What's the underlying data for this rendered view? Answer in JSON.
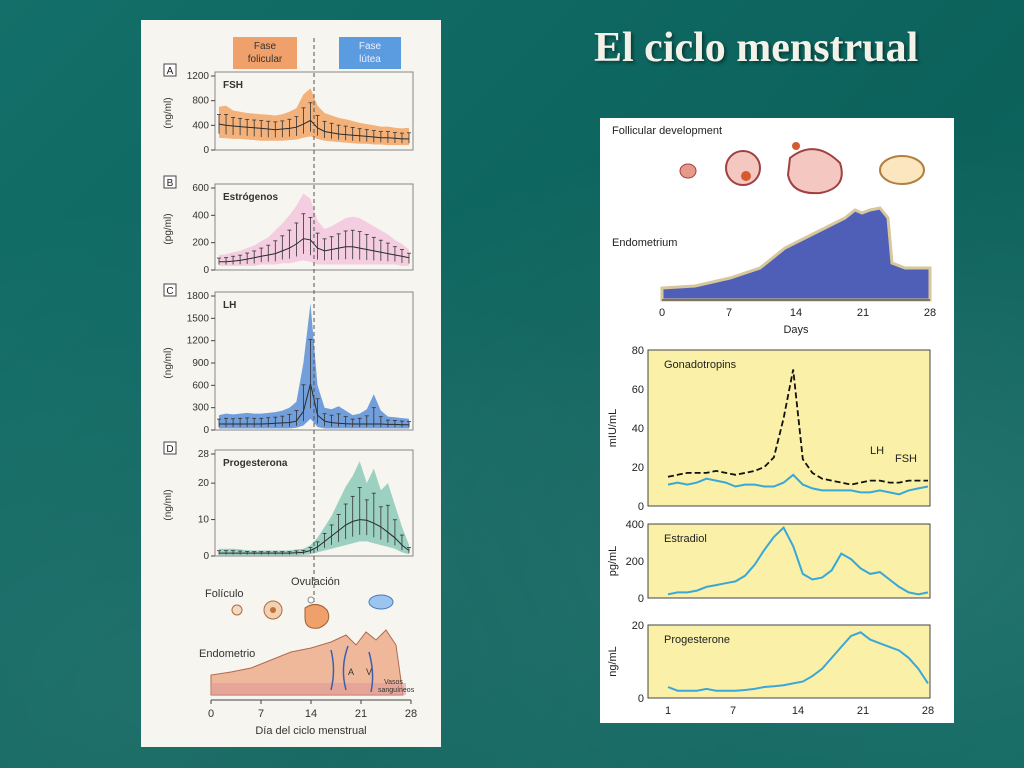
{
  "slide": {
    "title": "El ciclo menstrual"
  },
  "left_figure": {
    "phase_follicular": "Fase\nfolicular",
    "phase_luteal": "Fase\nlútea",
    "phase_colors": {
      "follicular": "#f0a06a",
      "luteal": "#5b9be0"
    },
    "panels": [
      {
        "letter": "A",
        "label": "FSH",
        "unit": "(ng/ml)",
        "ticks": [
          0,
          400,
          800,
          1200
        ],
        "ymax": 1200,
        "fill": "#f2a666",
        "line": "#2a2a2a",
        "days": [
          1,
          2,
          3,
          4,
          5,
          6,
          7,
          8,
          9,
          10,
          11,
          12,
          13,
          14,
          15,
          16,
          17,
          18,
          19,
          20,
          21,
          22,
          23,
          24,
          25,
          26,
          27,
          28
        ],
        "mean": [
          420,
          400,
          390,
          380,
          370,
          360,
          350,
          340,
          330,
          340,
          350,
          370,
          420,
          480,
          360,
          300,
          280,
          260,
          250,
          240,
          230,
          220,
          210,
          200,
          200,
          190,
          180,
          180
        ],
        "upper": [
          700,
          720,
          640,
          620,
          600,
          590,
          580,
          570,
          560,
          580,
          620,
          680,
          900,
          1000,
          720,
          600,
          560,
          520,
          500,
          470,
          440,
          420,
          400,
          380,
          380,
          360,
          350,
          360
        ],
        "lower": [
          200,
          190,
          180,
          180,
          170,
          160,
          150,
          150,
          150,
          150,
          160,
          170,
          200,
          220,
          180,
          150,
          140,
          130,
          120,
          110,
          100,
          100,
          90,
          90,
          80,
          80,
          80,
          80
        ]
      },
      {
        "letter": "B",
        "label": "Estrógenos",
        "unit": "(pg/ml)",
        "ticks": [
          0,
          200,
          400,
          600
        ],
        "ymax": 600,
        "fill": "#f3c6dd",
        "line": "#2a2a2a",
        "days": [
          1,
          2,
          3,
          4,
          5,
          6,
          7,
          8,
          9,
          10,
          11,
          12,
          13,
          14,
          15,
          16,
          17,
          18,
          19,
          20,
          21,
          22,
          23,
          24,
          25,
          26,
          27,
          28
        ],
        "mean": [
          60,
          60,
          65,
          70,
          80,
          90,
          100,
          110,
          120,
          140,
          160,
          190,
          230,
          220,
          160,
          140,
          150,
          160,
          170,
          170,
          160,
          150,
          140,
          130,
          120,
          110,
          100,
          90
        ],
        "upper": [
          110,
          115,
          130,
          140,
          160,
          180,
          210,
          240,
          290,
          340,
          400,
          470,
          560,
          520,
          360,
          300,
          320,
          350,
          380,
          390,
          380,
          350,
          320,
          290,
          260,
          220,
          190,
          150
        ],
        "lower": [
          30,
          30,
          30,
          30,
          30,
          30,
          40,
          40,
          40,
          50,
          50,
          60,
          70,
          60,
          40,
          40,
          40,
          40,
          40,
          40,
          40,
          40,
          40,
          40,
          40,
          40,
          30,
          30
        ]
      },
      {
        "letter": "C",
        "label": "LH",
        "unit": "(ng/ml)",
        "ticks": [
          0,
          300,
          600,
          900,
          1200,
          1500,
          1800
        ],
        "ymax": 1800,
        "fill": "#5a8fd8",
        "line": "#2a2a2a",
        "days": [
          1,
          2,
          3,
          4,
          5,
          6,
          7,
          8,
          9,
          10,
          11,
          12,
          13,
          14,
          15,
          16,
          17,
          18,
          19,
          20,
          21,
          22,
          23,
          24,
          25,
          26,
          27,
          28
        ],
        "mean": [
          80,
          80,
          80,
          80,
          80,
          80,
          80,
          85,
          90,
          95,
          100,
          120,
          250,
          620,
          200,
          120,
          100,
          90,
          85,
          80,
          80,
          80,
          80,
          80,
          75,
          75,
          70,
          70
        ],
        "upper": [
          200,
          220,
          210,
          220,
          230,
          220,
          220,
          230,
          240,
          260,
          300,
          380,
          900,
          1700,
          600,
          300,
          280,
          320,
          260,
          200,
          220,
          280,
          480,
          260,
          180,
          170,
          160,
          150
        ],
        "lower": [
          20,
          20,
          20,
          20,
          20,
          20,
          20,
          20,
          20,
          20,
          20,
          30,
          60,
          150,
          40,
          20,
          20,
          20,
          20,
          20,
          20,
          20,
          20,
          20,
          20,
          20,
          20,
          20
        ]
      },
      {
        "letter": "D",
        "label": "Progesterona",
        "unit": "(ng/ml)",
        "ticks": [
          0,
          10,
          20,
          28
        ],
        "ymax": 28,
        "fill": "#8cc9b8",
        "line": "#2a2a2a",
        "days": [
          1,
          2,
          3,
          4,
          5,
          6,
          7,
          8,
          9,
          10,
          11,
          12,
          13,
          14,
          15,
          16,
          17,
          18,
          19,
          20,
          21,
          22,
          23,
          24,
          25,
          26,
          27,
          28
        ],
        "mean": [
          0.8,
          0.8,
          0.8,
          0.8,
          0.8,
          0.8,
          0.8,
          0.8,
          0.8,
          0.8,
          0.8,
          0.9,
          1.0,
          1.5,
          2.5,
          4,
          5.5,
          7,
          8.5,
          9.5,
          10,
          9.8,
          9,
          8,
          6.5,
          5,
          3,
          1.5
        ],
        "upper": [
          2,
          2,
          2,
          1.8,
          1.6,
          1.5,
          1.5,
          1.5,
          1.5,
          1.5,
          1.5,
          1.8,
          2,
          3,
          5,
          8,
          11,
          15,
          19,
          22,
          26,
          20,
          24,
          18,
          20,
          14,
          8,
          3
        ],
        "lower": [
          0.2,
          0.2,
          0.2,
          0.2,
          0.2,
          0.2,
          0.2,
          0.2,
          0.2,
          0.2,
          0.2,
          0.2,
          0.3,
          0.5,
          1,
          1.5,
          2,
          2.5,
          3,
          3.5,
          4,
          4,
          3.5,
          3,
          2.5,
          2,
          1,
          0.5
        ]
      }
    ],
    "ovulation_label": "Ovulación",
    "follicle_label": "Folículo",
    "endometrium_label": "Endometrio",
    "vessels_label": "Vasos\nsanguíneos",
    "artery_label": "A",
    "vein_label": "V",
    "x_ticks": [
      "0",
      "7",
      "14",
      "21",
      "28"
    ],
    "x_axis_label": "Día del ciclo menstrual"
  },
  "right_figure": {
    "follicular_label": "Follicular development",
    "endometrium_label": "Endometrium",
    "days_label": "Days",
    "x_ticks_top": [
      "0",
      "7",
      "14",
      "21",
      "28"
    ],
    "colors": {
      "panel_bg": "#faf0a8",
      "line": "#3aa7d9",
      "endometrium": "#4f5fb8"
    },
    "gonadotropins": {
      "title": "Gonadotropins",
      "unit": "mIU/mL",
      "ticks": [
        "0",
        "20",
        "40",
        "60",
        "80"
      ],
      "ymax": 80,
      "lh_label": "LH",
      "fsh_label": "FSH",
      "days": [
        1,
        2,
        3,
        4,
        5,
        6,
        7,
        8,
        9,
        10,
        11,
        12,
        13,
        14,
        15,
        16,
        17,
        18,
        19,
        20,
        21,
        22,
        23,
        24,
        25,
        26,
        27,
        28
      ],
      "lh": [
        15,
        16,
        17,
        17,
        17,
        18,
        17,
        16,
        17,
        18,
        20,
        25,
        45,
        70,
        24,
        17,
        14,
        13,
        12,
        11,
        12,
        13,
        13,
        12,
        12,
        13,
        13,
        13
      ],
      "fsh": [
        11,
        12,
        11,
        12,
        14,
        13,
        12,
        10,
        11,
        11,
        10,
        10,
        12,
        16,
        11,
        9,
        8,
        8,
        8,
        8,
        7,
        7,
        8,
        7,
        6,
        8,
        9,
        10
      ]
    },
    "estradiol": {
      "title": "Estradiol",
      "unit": "pg/mL",
      "ticks": [
        "0",
        "200",
        "400"
      ],
      "ymax": 400,
      "days": [
        1,
        2,
        3,
        4,
        5,
        6,
        7,
        8,
        9,
        10,
        11,
        12,
        13,
        14,
        15,
        16,
        17,
        18,
        19,
        20,
        21,
        22,
        23,
        24,
        25,
        26,
        27,
        28
      ],
      "values": [
        20,
        30,
        30,
        40,
        60,
        70,
        80,
        90,
        120,
        180,
        260,
        330,
        380,
        280,
        130,
        100,
        110,
        150,
        240,
        210,
        160,
        130,
        140,
        100,
        60,
        30,
        20,
        30
      ]
    },
    "progesterone": {
      "title": "Progesterone",
      "unit": "ng/mL",
      "ticks": [
        "0",
        "20"
      ],
      "ymax": 20,
      "days": [
        1,
        2,
        3,
        4,
        5,
        6,
        7,
        8,
        9,
        10,
        11,
        12,
        13,
        14,
        15,
        16,
        17,
        18,
        19,
        20,
        21,
        22,
        23,
        24,
        25,
        26,
        27,
        28
      ],
      "values": [
        3,
        2,
        2,
        2,
        2.5,
        2,
        2,
        2,
        2.2,
        2.5,
        3,
        3.2,
        3.5,
        4,
        4.5,
        6,
        8,
        11,
        14,
        17,
        18,
        16,
        15,
        14,
        13,
        11,
        8,
        4
      ]
    },
    "x_ticks_bottom": [
      "1",
      "7",
      "14",
      "21",
      "28"
    ]
  },
  "chart_data": [
    {
      "type": "area",
      "title": "FSH",
      "ylabel": "(ng/ml)",
      "xlabel": "Día del ciclo menstrual",
      "ylim": [
        0,
        1200
      ]
    },
    {
      "type": "area",
      "title": "Estrógenos",
      "ylabel": "(pg/ml)",
      "ylim": [
        0,
        600
      ]
    },
    {
      "type": "area",
      "title": "LH",
      "ylabel": "(ng/ml)",
      "ylim": [
        0,
        1800
      ]
    },
    {
      "type": "area",
      "title": "Progesterona",
      "ylabel": "(ng/ml)",
      "ylim": [
        0,
        28
      ]
    },
    {
      "type": "line",
      "title": "Gonadotropins",
      "ylabel": "mIU/mL",
      "ylim": [
        0,
        80
      ],
      "series": [
        {
          "name": "LH"
        },
        {
          "name": "FSH"
        }
      ]
    },
    {
      "type": "line",
      "title": "Estradiol",
      "ylabel": "pg/mL",
      "ylim": [
        0,
        400
      ]
    },
    {
      "type": "line",
      "title": "Progesterone",
      "ylabel": "ng/mL",
      "xlabel": "Days",
      "ylim": [
        0,
        20
      ]
    }
  ]
}
